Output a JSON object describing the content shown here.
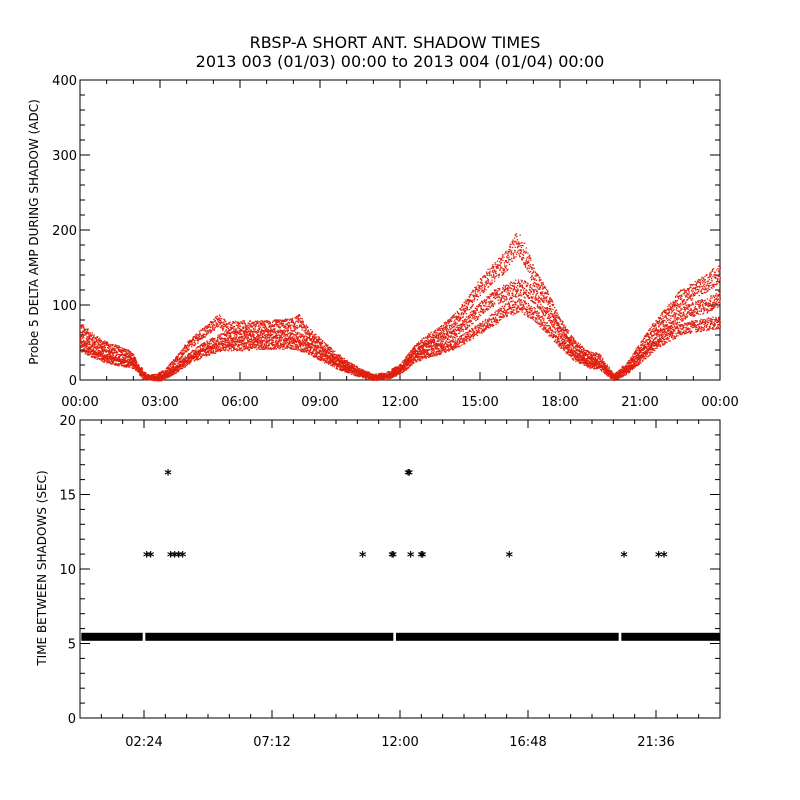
{
  "title": {
    "line1": "RBSP-A SHORT ANT. SHADOW TIMES",
    "line2": "2013 003 (01/03) 00:00 to 2013 004 (01/04) 00:00"
  },
  "colors": {
    "signal": "#e02010",
    "marker": "#000000",
    "axis": "#000000"
  },
  "chart_data": [
    {
      "type": "scatter",
      "ylabel": "Probe 5 DELTA AMP DURING SHADOW (ADC)",
      "xlabel": "",
      "xlim": [
        0,
        24
      ],
      "ylim": [
        0,
        400
      ],
      "x_unit": "hours",
      "x_ticks": [
        0,
        3,
        6,
        9,
        12,
        15,
        18,
        21,
        24
      ],
      "x_tick_labels": [
        "00:00",
        "03:00",
        "06:00",
        "09:00",
        "12:00",
        "15:00",
        "18:00",
        "21:00",
        "00:00"
      ],
      "y_ticks": [
        0,
        100,
        200,
        300,
        400
      ],
      "y_tick_labels": [
        "0",
        "100",
        "200",
        "300",
        "400"
      ],
      "series": [
        {
          "name": "upper band",
          "x": [
            0.0,
            0.5,
            1.0,
            1.5,
            1.8,
            2.0,
            2.2,
            2.4,
            2.8,
            3.2,
            3.6,
            4.0,
            4.5,
            5.0,
            5.2,
            5.5,
            6.0,
            7.0,
            8.0,
            8.2,
            8.5,
            9.0,
            9.5,
            10.0,
            10.5,
            11.0,
            11.5,
            12.0,
            12.5,
            13.0,
            13.5,
            14.0,
            14.5,
            15.0,
            15.5,
            16.0,
            16.4,
            16.7,
            17.0,
            17.5,
            18.0,
            18.5,
            19.0,
            19.5,
            20.0,
            20.5,
            21.0,
            21.5,
            22.0,
            22.5,
            23.0,
            23.5,
            24.0
          ],
          "y": [
            70,
            55,
            45,
            40,
            35,
            30,
            12,
            4,
            5,
            12,
            28,
            45,
            60,
            75,
            80,
            70,
            72,
            72,
            75,
            80,
            65,
            50,
            35,
            22,
            12,
            5,
            8,
            18,
            40,
            55,
            65,
            80,
            100,
            125,
            145,
            160,
            185,
            165,
            140,
            110,
            75,
            50,
            35,
            30,
            5,
            20,
            45,
            70,
            90,
            110,
            120,
            130,
            145
          ]
        },
        {
          "name": "middle band",
          "x": [
            0.0,
            0.5,
            1.0,
            1.5,
            2.0,
            2.5,
            3.0,
            3.5,
            4.0,
            4.5,
            5.0,
            5.5,
            6.0,
            7.0,
            8.0,
            8.5,
            9.0,
            9.5,
            10.0,
            10.5,
            11.0,
            11.5,
            12.0,
            12.5,
            13.0,
            13.5,
            14.0,
            14.5,
            15.0,
            15.5,
            16.0,
            16.5,
            17.0,
            17.5,
            18.0,
            18.5,
            19.0,
            19.5,
            20.0,
            20.5,
            21.0,
            21.5,
            22.0,
            22.5,
            23.0,
            23.5,
            24.0
          ],
          "y": [
            55,
            42,
            35,
            30,
            25,
            5,
            3,
            15,
            30,
            42,
            52,
            58,
            58,
            60,
            60,
            52,
            40,
            28,
            18,
            10,
            4,
            6,
            14,
            35,
            45,
            52,
            62,
            78,
            95,
            110,
            118,
            125,
            115,
            90,
            65,
            40,
            28,
            22,
            4,
            15,
            35,
            55,
            72,
            88,
            95,
            100,
            110
          ]
        },
        {
          "name": "lower band",
          "x": [
            0.0,
            0.5,
            1.0,
            1.5,
            2.0,
            2.5,
            3.0,
            3.5,
            4.0,
            4.5,
            5.0,
            5.5,
            6.0,
            7.0,
            8.0,
            8.5,
            9.0,
            9.5,
            10.0,
            10.5,
            11.0,
            11.5,
            12.0,
            12.5,
            13.0,
            13.5,
            14.0,
            14.5,
            15.0,
            15.5,
            16.0,
            16.5,
            17.0,
            17.5,
            18.0,
            18.5,
            19.0,
            19.5,
            20.0,
            20.5,
            21.0,
            21.5,
            22.0,
            22.5,
            23.0,
            23.5,
            24.0
          ],
          "y": [
            45,
            35,
            28,
            24,
            20,
            4,
            2,
            12,
            25,
            35,
            42,
            46,
            46,
            48,
            48,
            42,
            32,
            22,
            14,
            8,
            3,
            5,
            12,
            28,
            36,
            40,
            48,
            58,
            70,
            82,
            95,
            100,
            90,
            70,
            50,
            32,
            22,
            18,
            3,
            12,
            28,
            45,
            58,
            68,
            72,
            75,
            78
          ]
        }
      ]
    },
    {
      "type": "scatter",
      "ylabel": "TIME BETWEEN SHADOWS (SEC)",
      "xlabel": "",
      "xlim": [
        0,
        24
      ],
      "ylim": [
        0,
        20
      ],
      "x_unit": "hours",
      "x_ticks": [
        2.4,
        7.2,
        12.0,
        16.8,
        21.6
      ],
      "x_tick_labels": [
        "02:24",
        "07:12",
        "12:00",
        "16:48",
        "21:36"
      ],
      "y_ticks": [
        0,
        5,
        10,
        15,
        20
      ],
      "y_tick_labels": [
        "0",
        "5",
        "10",
        "15",
        "20"
      ],
      "baseline": {
        "y": 5.45,
        "x_start": 0.05,
        "x_end": 24.0,
        "gaps": [
          [
            2.35,
            2.45
          ],
          [
            11.75,
            11.85
          ],
          [
            20.2,
            20.3
          ]
        ]
      },
      "points": {
        "x": [
          2.5,
          2.65,
          3.4,
          3.55,
          3.7,
          3.85,
          3.3,
          10.6,
          11.7,
          11.75,
          12.3,
          12.35,
          12.4,
          12.8,
          12.85,
          16.1,
          20.4,
          21.7,
          21.9
        ],
        "y": [
          10.9,
          10.9,
          10.9,
          10.9,
          10.9,
          10.9,
          16.4,
          10.9,
          10.9,
          10.9,
          16.4,
          16.4,
          10.9,
          10.9,
          10.9,
          10.9,
          10.9,
          10.9,
          10.9
        ]
      }
    }
  ]
}
